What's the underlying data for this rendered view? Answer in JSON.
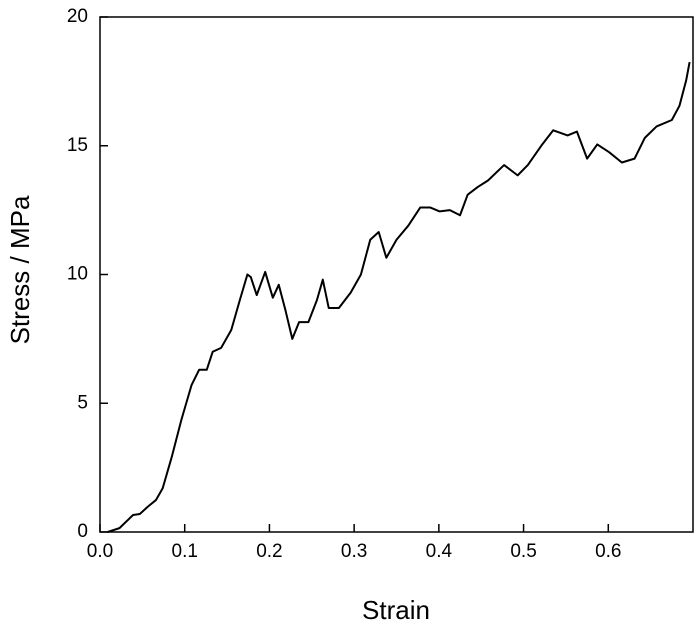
{
  "chart_data": {
    "type": "line",
    "x_label": "Strain",
    "y_label": "Stress / MPa",
    "series": [
      {
        "name": "Stress",
        "color": "#000000",
        "x": [
          0.009,
          0.023,
          0.039,
          0.047,
          0.056,
          0.066,
          0.074,
          0.085,
          0.096,
          0.108,
          0.117,
          0.126,
          0.133,
          0.143,
          0.155,
          0.165,
          0.174,
          0.178,
          0.185,
          0.195,
          0.204,
          0.211,
          0.219,
          0.227,
          0.235,
          0.246,
          0.256,
          0.263,
          0.27,
          0.282,
          0.296,
          0.308,
          0.319,
          0.329,
          0.338,
          0.35,
          0.364,
          0.378,
          0.39,
          0.401,
          0.413,
          0.425,
          0.434,
          0.446,
          0.458,
          0.477,
          0.493,
          0.505,
          0.522,
          0.535,
          0.552,
          0.563,
          0.575,
          0.587,
          0.601,
          0.616,
          0.631,
          0.643,
          0.657,
          0.675,
          0.684,
          0.692,
          0.696
        ],
        "values": [
          0,
          0.15,
          0.66,
          0.7,
          0.97,
          1.24,
          1.7,
          2.95,
          4.35,
          5.7,
          6.3,
          6.3,
          7.0,
          7.15,
          7.85,
          9.0,
          10.0,
          9.9,
          9.2,
          10.1,
          9.1,
          9.6,
          8.6,
          7.5,
          8.15,
          8.15,
          9.0,
          9.8,
          8.7,
          8.7,
          9.3,
          10.0,
          11.35,
          11.65,
          10.65,
          11.35,
          11.9,
          12.6,
          12.6,
          12.45,
          12.5,
          12.3,
          13.1,
          13.4,
          13.65,
          14.25,
          13.85,
          14.25,
          15.05,
          15.6,
          15.4,
          15.55,
          14.5,
          15.05,
          14.75,
          14.35,
          14.5,
          15.3,
          15.75,
          16.0,
          16.55,
          17.55,
          18.25
        ]
      }
    ],
    "xlim": [
      0,
      0.7
    ],
    "xticks": [
      {
        "value": 0,
        "label": "0.0"
      },
      0.1,
      0.2,
      0.3,
      0.4,
      0.5,
      0.6
    ],
    "ylim": [
      0,
      20
    ],
    "yticks": [
      0,
      5,
      10,
      15,
      20
    ]
  }
}
